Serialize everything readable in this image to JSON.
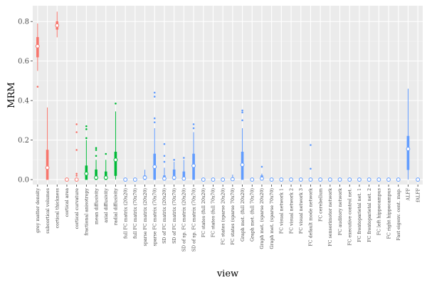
{
  "chart_data": {
    "type": "boxplot",
    "xlabel": "view",
    "ylabel": "MRM",
    "ylim": [
      -0.025,
      0.88
    ],
    "yticks": [
      0.0,
      0.2,
      0.4,
      0.6,
      0.8
    ],
    "ytick_labels": [
      "0.0",
      "0.2",
      "0.4",
      "0.6",
      "0.8"
    ],
    "grid": true,
    "legend": "none",
    "colors": {
      "structural": "#f8766d",
      "diffusion": "#00ba38",
      "functional": "#619cff",
      "panel": "#ebebeb",
      "grid": "#ffffff"
    },
    "categories": [
      {
        "label": "grey matter density",
        "group": "structural",
        "box": [
          0.62,
          0.675,
          0.72
        ],
        "whisk": [
          0.55,
          0.79
        ],
        "out": [
          0.47
        ],
        "mean": 0.675
      },
      {
        "label": "subcortical volumes",
        "group": "structural",
        "box": [
          0.0,
          0.06,
          0.15
        ],
        "whisk": [
          0.0,
          0.365
        ],
        "out": [],
        "mean": 0.06
      },
      {
        "label": "cortical thickness",
        "group": "structural",
        "box": [
          0.76,
          0.78,
          0.8
        ],
        "whisk": [
          0.72,
          0.85
        ],
        "out": [],
        "mean": 0.78
      },
      {
        "label": "cortical area",
        "group": "structural",
        "box": [
          0,
          0,
          0
        ],
        "whisk": [
          0,
          0
        ],
        "out": [],
        "mean": 0
      },
      {
        "label": "cortical curvature",
        "group": "structural",
        "box": [
          0,
          0,
          0
        ],
        "whisk": [
          0,
          0
        ],
        "out": [
          0.28,
          0.24,
          0.15,
          0.03,
          0.02
        ],
        "mean": 0
      },
      {
        "label": "fractional anisotropy",
        "group": "diffusion",
        "box": [
          0.0,
          0.02,
          0.07
        ],
        "whisk": [
          0.0,
          0.2
        ],
        "out": [
          0.27,
          0.255,
          0.21
        ],
        "mean": 0.03
      },
      {
        "label": "mean diffusivity",
        "group": "diffusion",
        "box": [
          0.0,
          0.01,
          0.05
        ],
        "whisk": [
          0.0,
          0.1
        ],
        "out": [
          0.16,
          0.15,
          0.12
        ],
        "mean": 0.01
      },
      {
        "label": "axial diffusivity",
        "group": "diffusion",
        "box": [
          0.0,
          0.01,
          0.04
        ],
        "whisk": [
          0.0,
          0.1
        ],
        "out": [
          0.13
        ],
        "mean": 0.01
      },
      {
        "label": "radial diffusivity",
        "group": "diffusion",
        "box": [
          0.02,
          0.1,
          0.14
        ],
        "whisk": [
          0.0,
          0.345
        ],
        "out": [
          0.385
        ],
        "mean": 0.1
      },
      {
        "label": "full FC matrix (20x20)",
        "group": "functional",
        "box": [
          0,
          0,
          0
        ],
        "whisk": [
          0,
          0
        ],
        "out": [],
        "mean": 0
      },
      {
        "label": "full FC matrix (70x70)",
        "group": "functional",
        "box": [
          0,
          0,
          0
        ],
        "whisk": [
          0,
          0
        ],
        "out": [],
        "mean": 0
      },
      {
        "label": "sparse FC matrix (20x20)",
        "group": "functional",
        "box": [
          0.0,
          0.0,
          0.02
        ],
        "whisk": [
          0.0,
          0.05
        ],
        "out": [],
        "mean": 0.01
      },
      {
        "label": "sparse FC matrix (70x70)",
        "group": "functional",
        "box": [
          0.0,
          0.06,
          0.13
        ],
        "whisk": [
          0.0,
          0.26
        ],
        "out": [
          0.44,
          0.42,
          0.31,
          0.29
        ],
        "mean": 0.065
      },
      {
        "label": "SD of FC matrix (20x20)",
        "group": "functional",
        "box": [
          0.0,
          0.0,
          0.02
        ],
        "whisk": [
          0.0,
          0.06
        ],
        "out": [
          0.18,
          0.12,
          0.09
        ],
        "mean": 0.005
      },
      {
        "label": "SD of FC matrix (70x70)",
        "group": "functional",
        "box": [
          0.0,
          0.01,
          0.05
        ],
        "whisk": [
          0.0,
          0.09
        ],
        "out": [
          0.1
        ],
        "mean": 0.01
      },
      {
        "label": "SD of sp. FC matrix (20x20)",
        "group": "functional",
        "box": [
          0.0,
          0.0,
          0.04
        ],
        "whisk": [
          0.0,
          0.1
        ],
        "out": [
          0.11
        ],
        "mean": 0.005
      },
      {
        "label": "SD of sp. FC matrix (70x70)",
        "group": "functional",
        "box": [
          0.0,
          0.07,
          0.13
        ],
        "whisk": [
          0.0,
          0.24
        ],
        "out": [
          0.28,
          0.26
        ],
        "mean": 0.07
      },
      {
        "label": "FC states (full 20x20)",
        "group": "functional",
        "box": [
          0,
          0,
          0
        ],
        "whisk": [
          0,
          0
        ],
        "out": [],
        "mean": 0
      },
      {
        "label": "FC states (full 70x70)",
        "group": "functional",
        "box": [
          0,
          0,
          0
        ],
        "whisk": [
          0,
          0
        ],
        "out": [],
        "mean": 0
      },
      {
        "label": "FC states (sparse 20x20)",
        "group": "functional",
        "box": [
          0,
          0,
          0
        ],
        "whisk": [
          0,
          0
        ],
        "out": [],
        "mean": 0
      },
      {
        "label": "FC states (sparse 70x70)",
        "group": "functional",
        "box": [
          0.0,
          0.0,
          0.01
        ],
        "whisk": [
          0.0,
          0.025
        ],
        "out": [],
        "mean": 0.002
      },
      {
        "label": "Graph met. (full 20x20)",
        "group": "functional",
        "box": [
          0.0,
          0.08,
          0.14
        ],
        "whisk": [
          0.0,
          0.26
        ],
        "out": [
          0.35,
          0.34,
          0.3
        ],
        "mean": 0.075
      },
      {
        "label": "Graph met. (full 70x70)",
        "group": "functional",
        "box": [
          0,
          0,
          0
        ],
        "whisk": [
          0,
          0
        ],
        "out": [],
        "mean": 0
      },
      {
        "label": "Graph met. (sparse 20x20)",
        "group": "functional",
        "box": [
          0.0,
          0.0,
          0.02
        ],
        "whisk": [
          0.0,
          0.03
        ],
        "out": [
          0.065
        ],
        "mean": 0.005
      },
      {
        "label": "Graph met. (sparse 70x70)",
        "group": "functional",
        "box": [
          0,
          0,
          0
        ],
        "whisk": [
          0,
          0
        ],
        "out": [],
        "mean": 0
      },
      {
        "label": "FC visual network 1",
        "group": "functional",
        "box": [
          0,
          0,
          0
        ],
        "whisk": [
          0,
          0
        ],
        "out": [],
        "mean": 0
      },
      {
        "label": "FC visual network 2",
        "group": "functional",
        "box": [
          0,
          0,
          0
        ],
        "whisk": [
          0,
          0
        ],
        "out": [],
        "mean": 0
      },
      {
        "label": "FC visual network 3",
        "group": "functional",
        "box": [
          0,
          0,
          0
        ],
        "whisk": [
          0,
          0
        ],
        "out": [],
        "mean": 0
      },
      {
        "label": "FC default mode network",
        "group": "functional",
        "box": [
          0,
          0,
          0
        ],
        "whisk": [
          0,
          0
        ],
        "out": [
          0.175,
          0.055
        ],
        "mean": 0
      },
      {
        "label": "FC cerebellum",
        "group": "functional",
        "box": [
          0,
          0,
          0
        ],
        "whisk": [
          0,
          0
        ],
        "out": [],
        "mean": 0
      },
      {
        "label": "FC sensorimotor network",
        "group": "functional",
        "box": [
          0,
          0,
          0
        ],
        "whisk": [
          0,
          0
        ],
        "out": [],
        "mean": 0
      },
      {
        "label": "FC auditory network",
        "group": "functional",
        "box": [
          0,
          0,
          0
        ],
        "whisk": [
          0,
          0
        ],
        "out": [],
        "mean": 0
      },
      {
        "label": "FC executive control net.",
        "group": "functional",
        "box": [
          0,
          0,
          0
        ],
        "whisk": [
          0,
          0
        ],
        "out": [],
        "mean": 0
      },
      {
        "label": "FC frontoparietal net. 1",
        "group": "functional",
        "box": [
          0,
          0,
          0
        ],
        "whisk": [
          0,
          0
        ],
        "out": [],
        "mean": 0
      },
      {
        "label": "FC frontoparietal net. 2",
        "group": "functional",
        "box": [
          0,
          0,
          0
        ],
        "whisk": [
          0,
          0
        ],
        "out": [],
        "mean": 0
      },
      {
        "label": "FC left hippocampus",
        "group": "functional",
        "box": [
          0,
          0,
          0
        ],
        "whisk": [
          0,
          0
        ],
        "out": [],
        "mean": 0
      },
      {
        "label": "FC right hippocampus",
        "group": "functional",
        "box": [
          0,
          0,
          0
        ],
        "whisk": [
          0,
          0
        ],
        "out": [],
        "mean": 0
      },
      {
        "label": "Fast eigenv. cent. map.",
        "group": "functional",
        "box": [
          0,
          0,
          0
        ],
        "whisk": [
          0,
          0
        ],
        "out": [],
        "mean": 0
      },
      {
        "label": "ALFF",
        "group": "functional",
        "box": [
          0.05,
          0.15,
          0.22
        ],
        "whisk": [
          0.0,
          0.46
        ],
        "out": [],
        "mean": 0.155
      },
      {
        "label": "fALFF",
        "group": "functional",
        "box": [
          0,
          0,
          0
        ],
        "whisk": [
          0,
          0
        ],
        "out": [],
        "mean": 0
      }
    ]
  }
}
